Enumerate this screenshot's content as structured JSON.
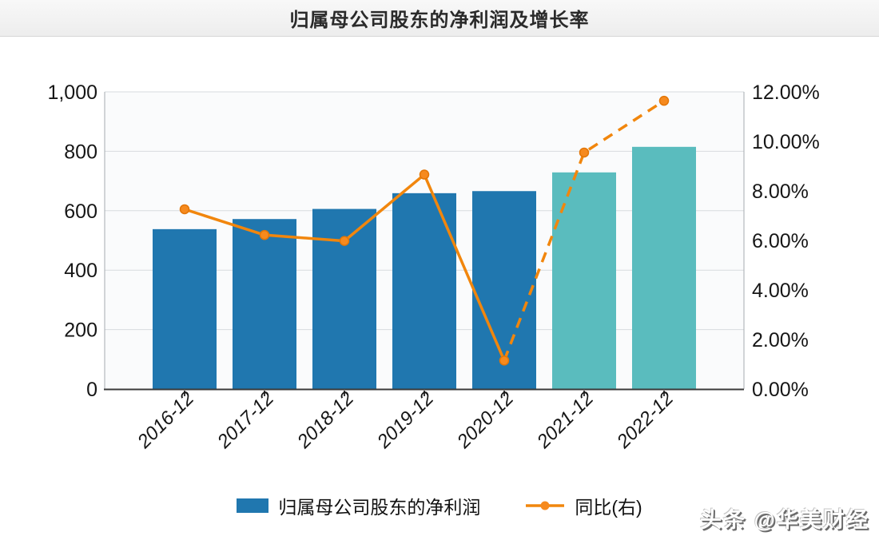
{
  "header": {
    "title": "归属母公司股东的净利润及增长率"
  },
  "watermark": {
    "text": "头条 @华美财经"
  },
  "colors": {
    "bar": "#2077af",
    "bar_forecast": "#5abcbe",
    "line": "#f1860d",
    "marker_fill": "#f68a1e",
    "marker_stroke": "#e37607",
    "grid": "#d7dbdf",
    "axis_side": "#a6abb0",
    "axis_bottom": "#3a3a3a",
    "text": "#161616",
    "plot_bg": "#fafbfc",
    "header_bg": "#f3f3f3"
  },
  "chart_data": {
    "type": "bar+line",
    "title": "归属母公司股东的净利润及增长率",
    "categories": [
      "2016-12",
      "2017-12",
      "2018-12",
      "2019-12",
      "2020-12",
      "2021-12",
      "2022-12"
    ],
    "series": [
      {
        "name": "归属母公司股东的净利润",
        "type": "bar",
        "axis": "left",
        "values": [
          538,
          572,
          606,
          659,
          666,
          729,
          815
        ],
        "forecast_from_index": 5
      },
      {
        "name": "同比(右)",
        "type": "line",
        "axis": "right",
        "values_percent": [
          7.26,
          6.22,
          5.98,
          8.66,
          1.15,
          9.55,
          11.64
        ],
        "dashed_from_index": 4
      }
    ],
    "left_axis": {
      "min": 0,
      "max": 1000,
      "tick_values": [
        0,
        200,
        400,
        600,
        800,
        1000
      ],
      "tick_labels": [
        "0",
        "200",
        "400",
        "600",
        "800",
        "1,000"
      ]
    },
    "right_axis": {
      "min": 0,
      "max": 12,
      "tick_values": [
        0,
        2,
        4,
        6,
        8,
        10,
        12
      ],
      "tick_labels": [
        "0.00%",
        "2.00%",
        "4.00%",
        "6.00%",
        "8.00%",
        "10.00%",
        "12.00%"
      ]
    },
    "grid": true,
    "legend_position": "bottom"
  }
}
